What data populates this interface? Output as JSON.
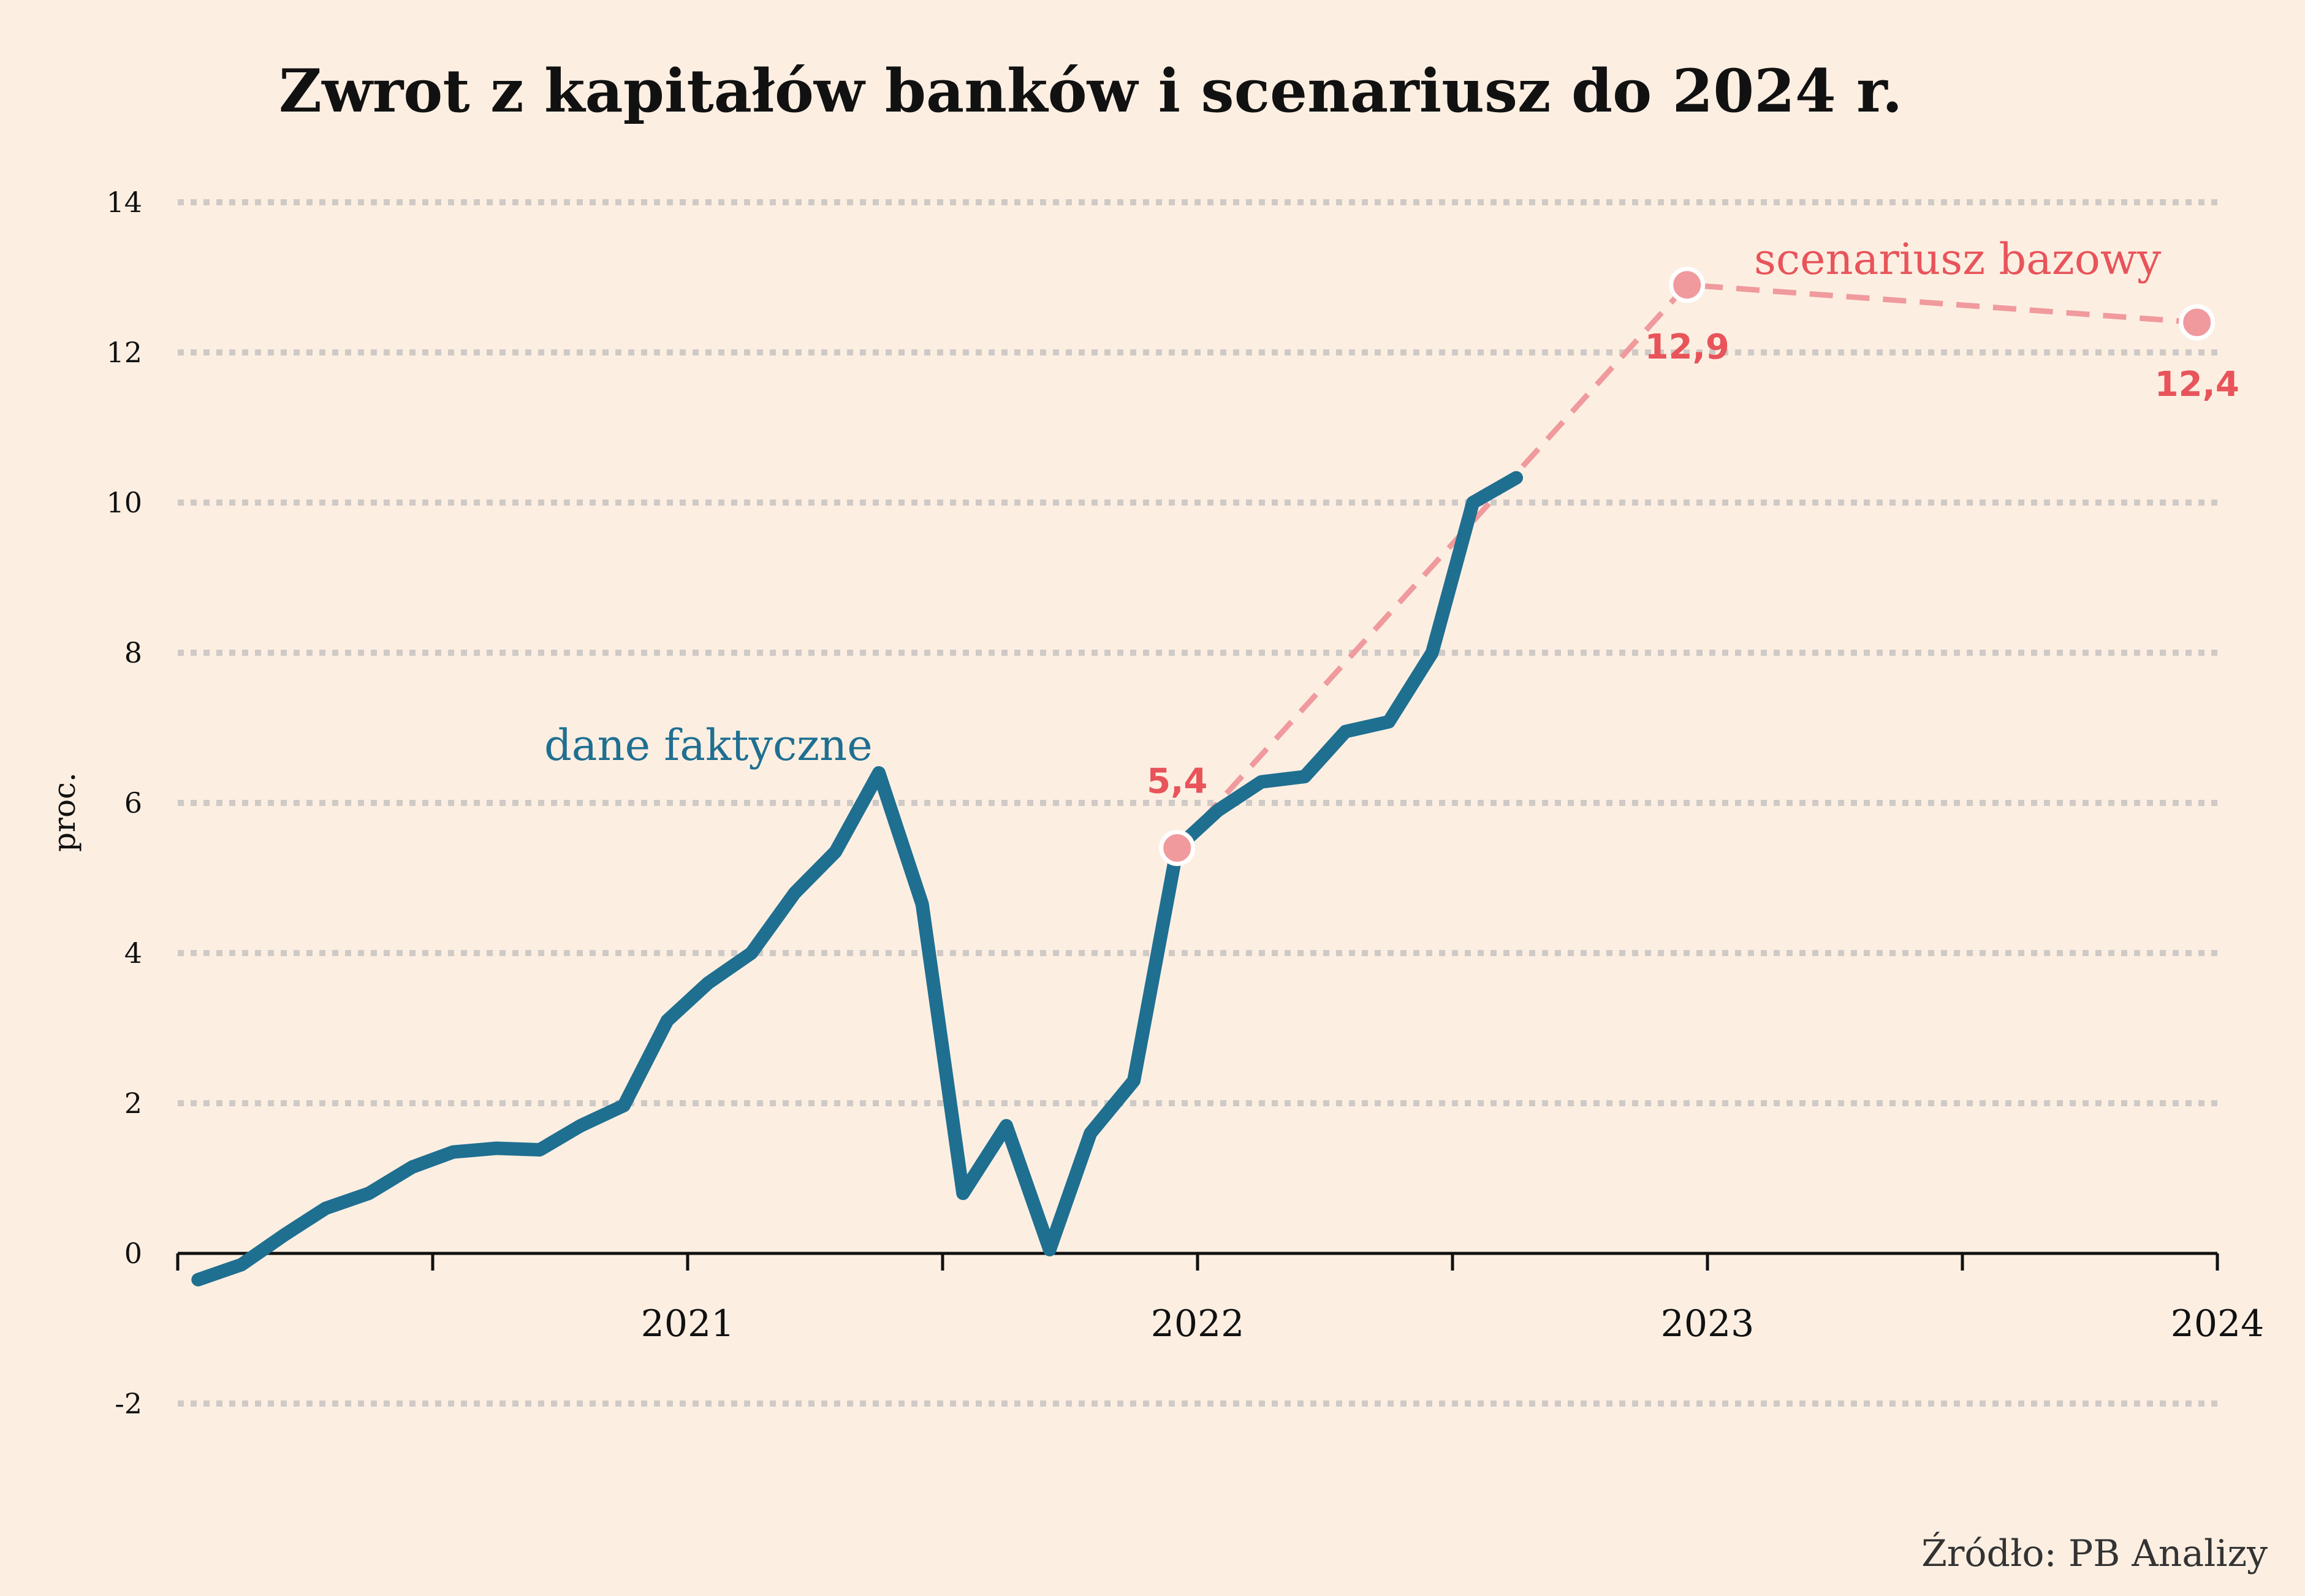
{
  "chart_data": {
    "type": "line",
    "title": "Zwrot z kapitałów banków i scenariusz do 2024 r.",
    "ylabel": "proc.",
    "ylim": [
      -2,
      14
    ],
    "yticks": [
      14,
      12,
      10,
      8,
      6,
      4,
      2,
      0,
      -2
    ],
    "xlim": [
      2020.0,
      2024.0
    ],
    "xticks": [
      "2021",
      "2022",
      "2023",
      "2024"
    ],
    "grid": "horizontal-dotted",
    "colors": {
      "actual": "#1f6f91",
      "scenario": "#f09a9d",
      "scenario_text": "#e8545a"
    },
    "series": [
      {
        "name": "dane faktyczne",
        "style": "solid",
        "x": [
          2020.04,
          2020.125,
          2020.21,
          2020.29,
          2020.375,
          2020.46,
          2020.54,
          2020.625,
          2020.71,
          2020.79,
          2020.875,
          2020.96,
          2021.04,
          2021.125,
          2021.21,
          2021.29,
          2021.375,
          2021.46,
          2021.54,
          2021.625,
          2021.71,
          2021.79,
          2021.875,
          2021.96,
          2022.04,
          2022.125,
          2022.21,
          2022.29,
          2022.375,
          2022.46,
          2022.54,
          2022.625
        ],
        "y": [
          -0.35,
          -0.15,
          0.25,
          0.6,
          0.8,
          1.15,
          1.35,
          1.4,
          1.38,
          1.7,
          1.97,
          3.1,
          3.6,
          4.0,
          4.8,
          5.35,
          6.4,
          4.65,
          0.8,
          1.7,
          0.05,
          1.6,
          2.3,
          5.4,
          5.9,
          6.28,
          6.35,
          6.95,
          7.08,
          8.0,
          10.0,
          10.33
        ]
      },
      {
        "name": "scenariusz bazowy",
        "style": "dashed",
        "x": [
          2021.96,
          2022.96,
          2023.96
        ],
        "y": [
          5.4,
          12.9,
          12.4
        ]
      }
    ],
    "annotations": [
      {
        "text": "5,4",
        "x": 2021.96,
        "y": 5.4
      },
      {
        "text": "12,9",
        "x": 2022.96,
        "y": 12.9
      },
      {
        "text": "12,4",
        "x": 2023.96,
        "y": 12.4
      }
    ],
    "source": "Źródło: PB Analizy"
  }
}
